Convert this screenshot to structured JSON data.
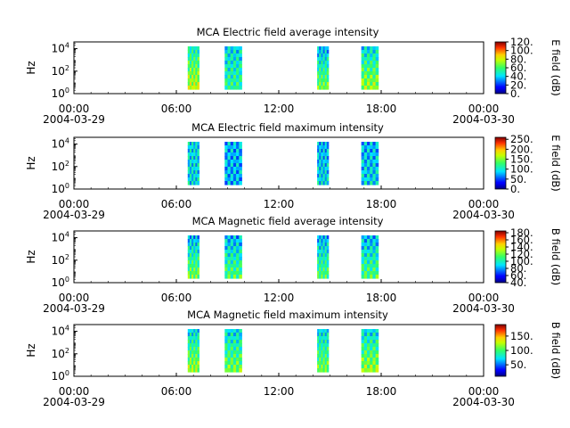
{
  "chart_data": [
    {
      "type": "heatmap",
      "title": "MCA  Electric field average intensity",
      "ylabel": "Hz",
      "yscale": "log",
      "ylim": [
        1,
        40000
      ],
      "y_ticks": [
        {
          "base": "10",
          "exp": "0"
        },
        {
          "base": "10",
          "exp": "2"
        },
        {
          "base": "10",
          "exp": "4"
        }
      ],
      "x_ticks": [
        {
          "time": "00:00",
          "date": "2004-03-29"
        },
        {
          "time": "06:00",
          "date": ""
        },
        {
          "time": "12:00",
          "date": ""
        },
        {
          "time": "18:00",
          "date": ""
        },
        {
          "time": "00:00",
          "date": "2004-03-30"
        }
      ],
      "xlim_hours": [
        0,
        24
      ],
      "colorbar": {
        "label": "E field (dB)",
        "ticks": [
          "0.",
          "20.",
          "40.",
          "60.",
          "80.",
          "100.",
          "120."
        ],
        "range": [
          0,
          120
        ]
      },
      "segments": [
        {
          "start": "2004-03-29 06:40",
          "end": "2004-03-29 07:20",
          "level_low": 0.65,
          "level_high": 0.4
        },
        {
          "start": "2004-03-29 08:50",
          "end": "2004-03-29 09:50",
          "level_low": 0.45,
          "level_high": 0.35
        },
        {
          "start": "2004-03-29 14:15",
          "end": "2004-03-29 14:55",
          "level_low": 0.55,
          "level_high": 0.3
        },
        {
          "start": "2004-03-29 16:50",
          "end": "2004-03-29 17:50",
          "level_low": 0.6,
          "level_high": 0.35
        }
      ]
    },
    {
      "type": "heatmap",
      "title": "MCA  Electric field maximum intensity",
      "ylabel": "Hz",
      "yscale": "log",
      "ylim": [
        1,
        40000
      ],
      "y_ticks": [
        {
          "base": "10",
          "exp": "0"
        },
        {
          "base": "10",
          "exp": "2"
        },
        {
          "base": "10",
          "exp": "4"
        }
      ],
      "x_ticks": [
        {
          "time": "00:00",
          "date": "2004-03-29"
        },
        {
          "time": "06:00",
          "date": ""
        },
        {
          "time": "12:00",
          "date": ""
        },
        {
          "time": "18:00",
          "date": ""
        },
        {
          "time": "00:00",
          "date": "2004-03-30"
        }
      ],
      "xlim_hours": [
        0,
        24
      ],
      "colorbar": {
        "label": "E field (dB)",
        "ticks": [
          "0.",
          "50.",
          "100.",
          "150.",
          "200.",
          "250."
        ],
        "range": [
          0,
          260
        ]
      },
      "segments": [
        {
          "start": "2004-03-29 06:40",
          "end": "2004-03-29 07:20",
          "level_low": 0.35,
          "level_high": 0.35
        },
        {
          "start": "2004-03-29 08:50",
          "end": "2004-03-29 09:50",
          "level_low": 0.3,
          "level_high": 0.3
        },
        {
          "start": "2004-03-29 14:15",
          "end": "2004-03-29 14:55",
          "level_low": 0.35,
          "level_high": 0.3
        },
        {
          "start": "2004-03-29 16:50",
          "end": "2004-03-29 17:50",
          "level_low": 0.35,
          "level_high": 0.3
        }
      ]
    },
    {
      "type": "heatmap",
      "title": "MCA  Magnetic field average intensity",
      "ylabel": "Hz",
      "yscale": "log",
      "ylim": [
        1,
        40000
      ],
      "y_ticks": [
        {
          "base": "10",
          "exp": "0"
        },
        {
          "base": "10",
          "exp": "2"
        },
        {
          "base": "10",
          "exp": "4"
        }
      ],
      "x_ticks": [
        {
          "time": "00:00",
          "date": "2004-03-29"
        },
        {
          "time": "06:00",
          "date": ""
        },
        {
          "time": "12:00",
          "date": ""
        },
        {
          "time": "18:00",
          "date": ""
        },
        {
          "time": "00:00",
          "date": "2004-03-30"
        }
      ],
      "xlim_hours": [
        0,
        24
      ],
      "colorbar": {
        "label": "B field (dB)",
        "ticks": [
          "40.",
          "60.",
          "80.",
          "100.",
          "120.",
          "140.",
          "160.",
          "180."
        ],
        "range": [
          40,
          185
        ]
      },
      "segments": [
        {
          "start": "2004-03-29 06:40",
          "end": "2004-03-29 07:20",
          "level_low": 0.55,
          "level_high": 0.3
        },
        {
          "start": "2004-03-29 08:50",
          "end": "2004-03-29 09:50",
          "level_low": 0.5,
          "level_high": 0.3
        },
        {
          "start": "2004-03-29 14:15",
          "end": "2004-03-29 14:55",
          "level_low": 0.5,
          "level_high": 0.3
        },
        {
          "start": "2004-03-29 16:50",
          "end": "2004-03-29 17:50",
          "level_low": 0.5,
          "level_high": 0.3
        }
      ]
    },
    {
      "type": "heatmap",
      "title": "MCA  Magnetic field maximum intensity",
      "ylabel": "Hz",
      "yscale": "log",
      "ylim": [
        1,
        40000
      ],
      "y_ticks": [
        {
          "base": "10",
          "exp": "0"
        },
        {
          "base": "10",
          "exp": "2"
        },
        {
          "base": "10",
          "exp": "4"
        }
      ],
      "x_ticks": [
        {
          "time": "00:00",
          "date": "2004-03-29"
        },
        {
          "time": "06:00",
          "date": ""
        },
        {
          "time": "12:00",
          "date": ""
        },
        {
          "time": "18:00",
          "date": ""
        },
        {
          "time": "00:00",
          "date": "2004-03-30"
        }
      ],
      "xlim_hours": [
        0,
        24
      ],
      "colorbar": {
        "label": "B field (dB)",
        "ticks": [
          "50.",
          "100.",
          "150."
        ],
        "range": [
          10,
          190
        ]
      },
      "segments": [
        {
          "start": "2004-03-29 06:40",
          "end": "2004-03-29 07:20",
          "level_low": 0.6,
          "level_high": 0.35
        },
        {
          "start": "2004-03-29 08:50",
          "end": "2004-03-29 09:50",
          "level_low": 0.55,
          "level_high": 0.35
        },
        {
          "start": "2004-03-29 14:15",
          "end": "2004-03-29 14:55",
          "level_low": 0.55,
          "level_high": 0.35
        },
        {
          "start": "2004-03-29 16:50",
          "end": "2004-03-29 17:50",
          "level_low": 0.6,
          "level_high": 0.35
        }
      ]
    }
  ]
}
